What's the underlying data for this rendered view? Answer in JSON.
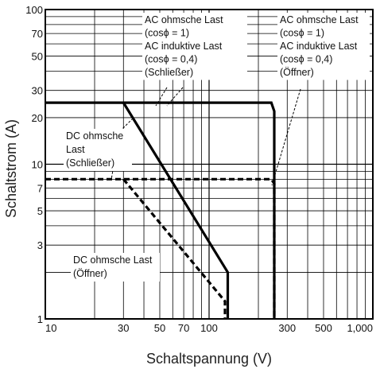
{
  "chart_data": {
    "type": "line",
    "xscale": "log",
    "yscale": "log",
    "xlim": [
      10,
      1000
    ],
    "ylim": [
      1,
      100
    ],
    "xlabel": "Schaltspannung (V)",
    "ylabel": "Schaltstrom (A)",
    "grid": true,
    "x_ticks": [
      {
        "value": 10,
        "label": "10"
      },
      {
        "value": 30,
        "label": "30"
      },
      {
        "value": 50,
        "label": "50"
      },
      {
        "value": 70,
        "label": "70"
      },
      {
        "value": 100,
        "label": "100"
      },
      {
        "value": 300,
        "label": "300"
      },
      {
        "value": 500,
        "label": "500"
      },
      {
        "value": 1000,
        "label": "1,000"
      }
    ],
    "y_ticks": [
      {
        "value": 1,
        "label": "1"
      },
      {
        "value": 3,
        "label": "3"
      },
      {
        "value": 5,
        "label": "5"
      },
      {
        "value": 7,
        "label": "7"
      },
      {
        "value": 10,
        "label": "10"
      },
      {
        "value": 20,
        "label": "20"
      },
      {
        "value": 30,
        "label": "30"
      },
      {
        "value": 50,
        "label": "50"
      },
      {
        "value": 70,
        "label": "70"
      },
      {
        "value": 100,
        "label": "100"
      }
    ],
    "series": [
      {
        "style": "solid",
        "points": [
          [
            10,
            25
          ],
          [
            240,
            25
          ],
          [
            250,
            22
          ],
          [
            250,
            1
          ]
        ]
      },
      {
        "style": "solid",
        "points": [
          [
            30,
            25
          ],
          [
            130,
            2
          ],
          [
            130,
            1
          ]
        ]
      },
      {
        "style": "dashed",
        "points": [
          [
            10,
            8
          ],
          [
            240,
            8
          ],
          [
            250,
            7.5
          ],
          [
            250,
            1
          ]
        ]
      },
      {
        "style": "dashed",
        "points": [
          [
            30,
            8
          ],
          [
            125,
            1.3
          ],
          [
            125,
            1
          ]
        ]
      }
    ],
    "annotations": [
      {
        "lines": [
          "AC ohmsche Last",
          "(cosϕ = 1)",
          "AC induktive Last",
          "(cosϕ = 0,4)",
          "(Schließer)"
        ]
      },
      {
        "lines": [
          "AC ohmsche Last",
          "(cosϕ = 1)",
          "AC induktive Last",
          "(cosϕ = 0,4)",
          "(Öffner)"
        ]
      },
      {
        "lines": [
          "DC ohmsche",
          "Last",
          "(Schließer)"
        ]
      },
      {
        "lines": [
          "DC ohmsche Last",
          "(Öffner)"
        ]
      }
    ]
  }
}
